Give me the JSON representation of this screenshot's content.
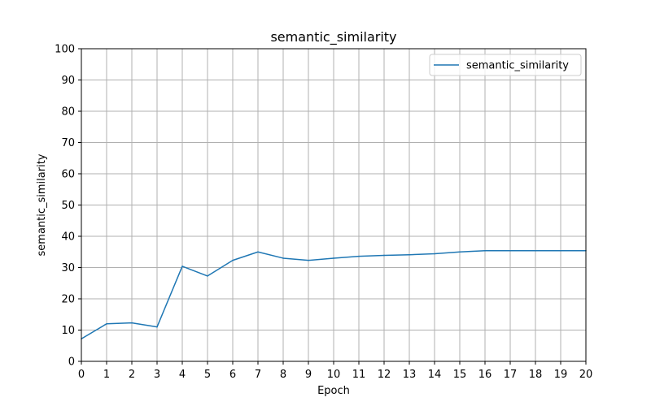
{
  "chart_data": {
    "type": "line",
    "title": "semantic_similarity",
    "xlabel": "Epoch",
    "ylabel": "semantic_similarity",
    "xlim": [
      0,
      20
    ],
    "ylim": [
      0,
      100
    ],
    "xticks": [
      0,
      1,
      2,
      3,
      4,
      5,
      6,
      7,
      8,
      9,
      10,
      11,
      12,
      13,
      14,
      15,
      16,
      17,
      18,
      19,
      20
    ],
    "yticks": [
      0,
      10,
      20,
      30,
      40,
      50,
      60,
      70,
      80,
      90,
      100
    ],
    "grid": true,
    "legend_position": "top-right",
    "series": [
      {
        "name": "semantic_similarity",
        "color": "#1f77b4",
        "x": [
          0,
          1,
          2,
          3,
          4,
          5,
          6,
          7,
          8,
          9,
          10,
          11,
          12,
          13,
          14,
          15,
          16,
          17,
          18,
          19,
          20
        ],
        "values": [
          7.2,
          12.0,
          12.3,
          11.0,
          30.4,
          27.3,
          32.3,
          35.0,
          33.0,
          32.3,
          33.0,
          33.6,
          33.9,
          34.1,
          34.4,
          35.0,
          35.4,
          35.4,
          35.4,
          35.4,
          35.4
        ]
      }
    ]
  }
}
